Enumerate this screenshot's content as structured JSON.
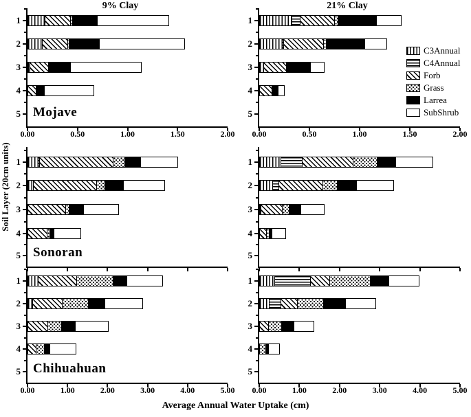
{
  "figure": {
    "column_titles": [
      "9% Clay",
      "21% Clay"
    ],
    "xlabel": "Average Annual Water Uptake (cm)",
    "ylabel": "Soil Layer (20cm units)"
  },
  "legend": {
    "position": "top-right-panel",
    "items": [
      {
        "label": "C3Annual",
        "pattern": "vertical-stripes"
      },
      {
        "label": "C4Annual",
        "pattern": "horizontal-stripes"
      },
      {
        "label": "Forb",
        "pattern": "diagonal-stripes"
      },
      {
        "label": "Grass",
        "pattern": "stipple-dots"
      },
      {
        "label": "Larrea",
        "pattern": "solid-black",
        "color": "#000000"
      },
      {
        "label": "SubShrub",
        "pattern": "white",
        "color": "#ffffff"
      }
    ]
  },
  "chart_data": {
    "type": "bar",
    "orientation": "horizontal",
    "stacked": true,
    "units": "cm",
    "series_order": [
      "C3Annual",
      "C4Annual",
      "Forb",
      "Grass",
      "Larrea",
      "SubShrub"
    ],
    "y_categories": [
      "1",
      "2",
      "3",
      "4",
      "5"
    ],
    "panels": [
      {
        "region": "Mojave",
        "clay": "9% Clay",
        "row": 0,
        "col": 0,
        "xlim": [
          0,
          2
        ],
        "xticks": [
          "0.00",
          "0.50",
          "1.00",
          "1.50",
          "2.00"
        ],
        "xtick_labels_visible": true,
        "region_label_visible": true,
        "layers": [
          {
            "layer": "1",
            "segments": {
              "C3Annual": 0.18,
              "Forb": 0.26,
              "Grass": 0.03,
              "Larrea": 0.25,
              "SubShrub": 0.72
            }
          },
          {
            "layer": "2",
            "segments": {
              "C3Annual": 0.15,
              "Forb": 0.26,
              "Grass": 0.02,
              "Larrea": 0.31,
              "SubShrub": 0.86
            }
          },
          {
            "layer": "3",
            "segments": {
              "C3Annual": 0.03,
              "Forb": 0.19,
              "Larrea": 0.23,
              "SubShrub": 0.71
            }
          },
          {
            "layer": "4",
            "segments": {
              "Forb": 0.09,
              "Larrea": 0.09,
              "SubShrub": 0.5
            }
          },
          {
            "layer": "5",
            "segments": {}
          }
        ]
      },
      {
        "region": "Mojave",
        "clay": "21% Clay",
        "row": 0,
        "col": 1,
        "xlim": [
          0,
          2
        ],
        "xticks": [
          "0.00",
          "0.50",
          "1.00",
          "1.50",
          "2.00"
        ],
        "xtick_labels_visible": true,
        "region_label_visible": false,
        "layers": [
          {
            "layer": "1",
            "segments": {
              "C3Annual": 0.33,
              "C4Annual": 0.09,
              "Forb": 0.35,
              "Grass": 0.04,
              "Larrea": 0.39,
              "SubShrub": 0.25
            }
          },
          {
            "layer": "2",
            "segments": {
              "C3Annual": 0.23,
              "C4Annual": 0.02,
              "Forb": 0.41,
              "Grass": 0.03,
              "Larrea": 0.39,
              "SubShrub": 0.23
            }
          },
          {
            "layer": "3",
            "segments": {
              "C3Annual": 0.05,
              "Forb": 0.23,
              "Larrea": 0.25,
              "SubShrub": 0.14
            }
          },
          {
            "layer": "4",
            "segments": {
              "Forb": 0.13,
              "Larrea": 0.07,
              "SubShrub": 0.07
            }
          },
          {
            "layer": "5",
            "segments": {}
          }
        ]
      },
      {
        "region": "Sonoran",
        "clay": "9% Clay",
        "row": 1,
        "col": 0,
        "xlim": [
          0,
          5
        ],
        "xticks": [
          "0.00",
          "1.00",
          "2.00",
          "3.00",
          "4.00",
          "5.00"
        ],
        "xtick_labels_visible": false,
        "region_label_visible": true,
        "layers": [
          {
            "layer": "1",
            "segments": {
              "C3Annual": 0.28,
              "C4Annual": 0.05,
              "Forb": 1.85,
              "Grass": 0.31,
              "Larrea": 0.41,
              "SubShrub": 0.95
            }
          },
          {
            "layer": "2",
            "segments": {
              "C3Annual": 0.15,
              "Forb": 1.6,
              "Grass": 0.22,
              "Larrea": 0.49,
              "SubShrub": 1.05
            }
          },
          {
            "layer": "3",
            "segments": {
              "Forb": 0.97,
              "Grass": 0.1,
              "Larrea": 0.37,
              "SubShrub": 0.9
            }
          },
          {
            "layer": "4",
            "segments": {
              "Forb": 0.49,
              "Grass": 0.1,
              "Larrea": 0.12,
              "SubShrub": 0.68
            }
          },
          {
            "layer": "5",
            "segments": {}
          }
        ]
      },
      {
        "region": "Sonoran",
        "clay": "21% Clay",
        "row": 1,
        "col": 1,
        "xlim": [
          0,
          5
        ],
        "xticks": [
          "0.00",
          "1.00",
          "2.00",
          "3.00",
          "4.00",
          "5.00"
        ],
        "xtick_labels_visible": false,
        "region_label_visible": false,
        "layers": [
          {
            "layer": "1",
            "segments": {
              "C3Annual": 0.55,
              "C4Annual": 0.55,
              "Forb": 1.28,
              "Grass": 0.62,
              "Larrea": 0.47,
              "SubShrub": 0.95
            }
          },
          {
            "layer": "2",
            "segments": {
              "C3Annual": 0.34,
              "C4Annual": 0.17,
              "Forb": 1.12,
              "Grass": 0.37,
              "Larrea": 0.5,
              "SubShrub": 0.95
            }
          },
          {
            "layer": "3",
            "segments": {
              "C3Annual": 0.05,
              "Forb": 0.55,
              "Grass": 0.18,
              "Larrea": 0.32,
              "SubShrub": 0.6
            }
          },
          {
            "layer": "4",
            "segments": {
              "Forb": 0.19,
              "Grass": 0.08,
              "Larrea": 0.09,
              "SubShrub": 0.36
            }
          },
          {
            "layer": "5",
            "segments": {}
          }
        ]
      },
      {
        "region": "Chihuahuan",
        "clay": "9% Clay",
        "row": 2,
        "col": 0,
        "xlim": [
          0,
          5
        ],
        "xticks": [
          "0.00",
          "1.00",
          "2.00",
          "3.00",
          "4.00",
          "5.00"
        ],
        "xtick_labels_visible": true,
        "region_label_visible": true,
        "layers": [
          {
            "layer": "1",
            "segments": {
              "C3Annual": 0.27,
              "Forb": 0.99,
              "Grass": 0.93,
              "Larrea": 0.36,
              "SubShrub": 0.91
            }
          },
          {
            "layer": "2",
            "segments": {
              "C3Annual": 0.14,
              "Forb": 0.76,
              "Grass": 0.66,
              "Larrea": 0.43,
              "SubShrub": 0.97
            }
          },
          {
            "layer": "3",
            "segments": {
              "Forb": 0.52,
              "Grass": 0.36,
              "Larrea": 0.36,
              "SubShrub": 0.84
            }
          },
          {
            "layer": "4",
            "segments": {
              "Forb": 0.22,
              "Grass": 0.23,
              "Larrea": 0.15,
              "SubShrub": 0.67
            }
          },
          {
            "layer": "5",
            "segments": {}
          }
        ]
      },
      {
        "region": "Chihuahuan",
        "clay": "21% Clay",
        "row": 2,
        "col": 1,
        "xlim": [
          0,
          5
        ],
        "xticks": [
          "0.00",
          "1.00",
          "2.00",
          "3.00",
          "4.00",
          "5.00"
        ],
        "xtick_labels_visible": true,
        "region_label_visible": false,
        "layers": [
          {
            "layer": "1",
            "segments": {
              "C3Annual": 0.39,
              "C4Annual": 0.92,
              "Forb": 0.48,
              "Grass": 1.03,
              "Larrea": 0.49,
              "SubShrub": 0.77
            }
          },
          {
            "layer": "2",
            "segments": {
              "C3Annual": 0.26,
              "C4Annual": 0.3,
              "Forb": 0.43,
              "Grass": 0.67,
              "Larrea": 0.56,
              "SubShrub": 0.77
            }
          },
          {
            "layer": "3",
            "segments": {
              "Forb": 0.24,
              "Grass": 0.34,
              "Larrea": 0.32,
              "SubShrub": 0.53
            }
          },
          {
            "layer": "4",
            "segments": {
              "Grass": 0.17,
              "Larrea": 0.08,
              "SubShrub": 0.3
            }
          },
          {
            "layer": "5",
            "segments": {}
          }
        ]
      }
    ]
  }
}
